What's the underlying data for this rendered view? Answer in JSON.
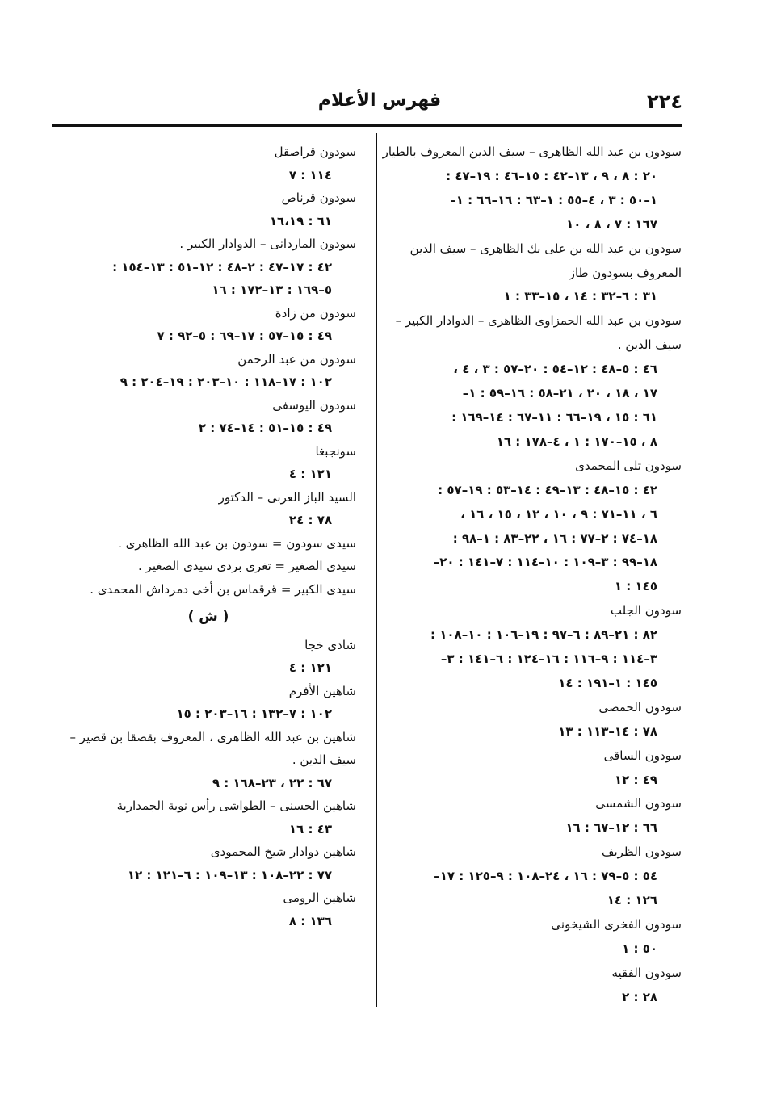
{
  "header": {
    "page_number": "٢٢٤",
    "title": "فهرس الأعلام"
  },
  "right_column": {
    "entries": [
      {
        "name": [
          "سودون بن عبد الله الظاهرى – سيف الدين المعروف بالطيار"
        ],
        "refs": [
          "٢٠ : ٨ ، ٩ ، ١٣–٤٢ : ١٥–٤٦ : ١٩–٤٧ :",
          "١–٥٠ : ٣ ، ٤–٥٥ : ١–٦٣ : ١٦–٦٦ : ١–",
          "١٦٧ : ٧ ، ٨ ، ١٠"
        ]
      },
      {
        "name": [
          "سودون بن عبد الله بن على بك الظاهرى – سيف الدين",
          "المعروف بسودون طاز"
        ],
        "refs": [
          "٣١ : ٦–٣٢ : ١٤ ، ١٥–٣٣ : ١"
        ]
      },
      {
        "name": [
          "سودون بن عبد الله الحمزاوى الظاهرى – الدوادار الكبير –",
          "سيف الدين ."
        ],
        "refs": [
          "٤٦ : ٥–٤٨ : ١٢–٥٤ : ٢٠–٥٧ : ٣ ، ٤ ،",
          "١٧ ، ١٨ ، ٢٠ ، ٢١–٥٨ : ١٦–٥٩ : ١–",
          "٦١ : ١٥ ، ١٩–٦٦ : ١١–٦٧ : ١٤–١٦٩ :",
          "٨ ، ١٥–١٧٠ : ١ ، ٤–١٧٨ : ١٦"
        ]
      },
      {
        "name": [
          "سودون تلى المحمدى"
        ],
        "refs": [
          "٤٢ : ١٥–٤٨ : ١٣–٤٩ : ١٤–٥٣ : ١٩–٥٧ :",
          "٦ ، ١١–٧١ : ٩ ، ١٠ ، ١٢ ، ١٥ ، ١٦ ،",
          "١٨–٧٤ : ٢–٧٧ : ١٦ ، ٢٢–٨٣ : ١–٩٨ :",
          "١٨–٩٩ : ٣–١٠٩ : ١٠–١١٤ : ٧–١٤١ : ٢٠–",
          "١٤٥ : ١"
        ]
      },
      {
        "name": [
          "سودون الجلب"
        ],
        "refs": [
          "٨٢ : ٢١–٨٩ : ٦–٩٧ : ١٩–١٠٦ : ١٠–١٠٨ :",
          "٣–١١٤ : ٩–١١٦ : ١٦–١٢٤ : ٦–١٤١ : ٣–",
          "١٤٥ : ١–١٩١ : ١٤"
        ]
      },
      {
        "name": [
          "سودون الحمصى"
        ],
        "refs": [
          "٧٨ : ١٤–١١٣ : ١٣"
        ]
      },
      {
        "name": [
          "سودون الساقى"
        ],
        "refs": [
          "٤٩ : ١٢"
        ]
      },
      {
        "name": [
          "سودون الشمسى"
        ],
        "refs": [
          "٦٦ : ١٢–٦٧ : ١٦"
        ]
      },
      {
        "name": [
          "سودون الظريف"
        ],
        "refs": [
          "٥٤ : ٥–٧٩ : ١٦ ، ٢٤–١٠٨ : ٩–١٢٥ : ١٧–",
          "١٢٦ : ١٤"
        ]
      },
      {
        "name": [
          "سودون الفخرى الشيخونى"
        ],
        "refs": [
          "٥٠ : ١"
        ]
      },
      {
        "name": [
          "سودون الفقيه"
        ],
        "refs": [
          "٢٨ : ٢"
        ]
      }
    ]
  },
  "left_column": [
    {
      "entries": [
        {
          "name": [
            "سودون قراصقل"
          ],
          "refs": [
            "١١٤ : ٧"
          ]
        },
        {
          "name": [
            "سودون قرناص"
          ],
          "refs": [
            "٦١ : ١٦،١٩"
          ]
        },
        {
          "name": [
            "سودون الماردانى – الدوادار الكبير ."
          ],
          "refs": [
            "٤٢ : ١٧–٤٧ : ٢–٤٨ : ١٢–٥١ : ١٣–١٥٤ :",
            "٥–١٦٩ : ١٣–١٧٢ : ١٦"
          ]
        },
        {
          "name": [
            "سودون من زادة"
          ],
          "refs": [
            "٤٩ : ١٥–٥٧ : ١٧–٦٩ : ٥–٩٢ : ٧"
          ]
        },
        {
          "name": [
            "سودون من عبد الرحمن"
          ],
          "refs": [
            "١٠٢ : ١٧–١١٨ : ١٠–٢٠٣ : ١٩–٢٠٤ : ٩"
          ]
        },
        {
          "name": [
            "سودون اليوسفى"
          ],
          "refs": [
            "٤٩ : ١٥–٥١ : ١٤–٧٤ : ٢"
          ]
        },
        {
          "name": [
            "سونجبغا"
          ],
          "refs": [
            "١٢١ : ٤"
          ]
        },
        {
          "name": [
            "السيد الباز العربى – الدكتور"
          ],
          "refs": [
            "٧٨ : ٢٤"
          ]
        },
        {
          "name": [
            "سيدى سودون = سودون بن عبد الله الظاهرى ."
          ]
        },
        {
          "name": [
            "سيدى الصغير = تغرى بردى سيدى الصغير ."
          ]
        },
        {
          "name": [
            "سيدى الكبير = قرقماس بن أخى دمرداش المحمدى ."
          ]
        }
      ]
    },
    {
      "heading": "( ش )",
      "entries": [
        {
          "name": [
            "شادى خجا"
          ],
          "refs": [
            "١٢١ : ٤"
          ]
        },
        {
          "name": [
            "شاهين الأفرم"
          ],
          "refs": [
            "١٠٢ : ٧–١٣٢ : ١٦–٢٠٣ : ١٥"
          ]
        },
        {
          "name": [
            "شاهين بن عبد الله الظاهرى ، المعروف بقصقا بن قصير –",
            "سيف الدين ."
          ],
          "refs": [
            "٦٧ : ٢٢ ، ٢٣–١٦٨ : ٩"
          ]
        },
        {
          "name": [
            "شاهين الحسنى – الطواشى رأس نوبة الجمدارية"
          ],
          "refs": [
            "٤٣ : ١٦"
          ]
        },
        {
          "name": [
            "شاهين دوادار شيخ المحمودى"
          ],
          "refs": [
            "٧٧ : ٢٢–١٠٨ : ١٣–١٠٩ : ٦–١٢١ : ١٢"
          ]
        },
        {
          "name": [
            "شاهين الرومى"
          ],
          "refs": [
            "١٣٦ : ٨"
          ]
        }
      ]
    }
  ]
}
